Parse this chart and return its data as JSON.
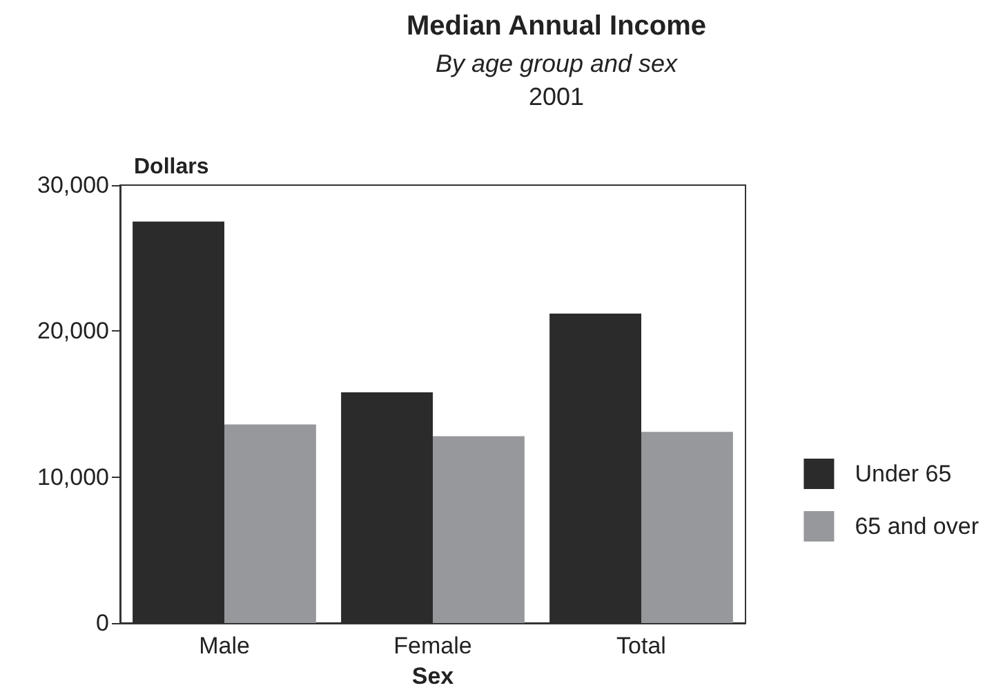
{
  "chart_data": {
    "type": "bar",
    "title": "Median Annual Income",
    "subtitle": "By age group and sex",
    "annotations": [
      "2001"
    ],
    "xlabel": "Sex",
    "ylabel": "Dollars",
    "categories": [
      "Male",
      "Female",
      "Total"
    ],
    "series": [
      {
        "name": "Under 65",
        "color": "#2b2b2b",
        "values": [
          27500,
          15800,
          21200
        ]
      },
      {
        "name": "65 and over",
        "color": "#96989b",
        "values": [
          13600,
          12800,
          13100
        ]
      }
    ],
    "ylim": [
      0,
      30000
    ],
    "yticks": [
      0,
      {
        "value": 10000,
        "label": "10,000"
      },
      {
        "value": 20000,
        "label": "20,000"
      },
      {
        "value": 30000,
        "label": "30,000"
      }
    ],
    "grid": false,
    "legend": "right"
  }
}
